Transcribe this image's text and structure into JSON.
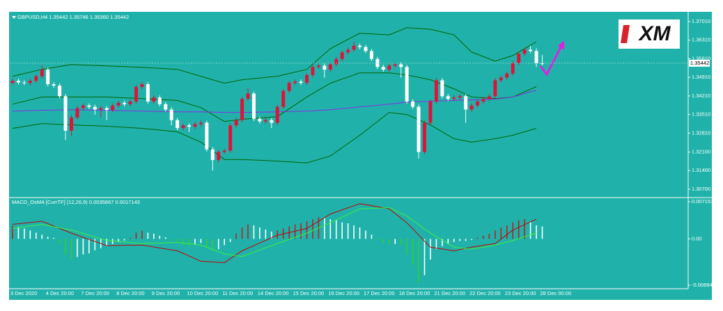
{
  "chart_data": [
    {
      "type": "candlestick",
      "title": "GBPUSD,H4  1.35442 1.35746 1.35360 1.35442",
      "categories": [
        "3 Dec 2020",
        null,
        null,
        null,
        null,
        null,
        "4 Dec 20:00",
        null,
        null,
        null,
        null,
        null,
        "7 Dec 20:00",
        null,
        null,
        null,
        null,
        null,
        "8 Dec 20:00",
        null,
        null,
        null,
        null,
        null,
        "9 Dec 20:00",
        null,
        null,
        null,
        null,
        null,
        "10 Dec 20:00",
        null,
        null,
        null,
        null,
        null,
        "11 Dec 20:00",
        null,
        null,
        null,
        null,
        null,
        "14 Dec 20:00",
        null,
        null,
        null,
        null,
        null,
        "15 Dec 20:00",
        null,
        null,
        null,
        null,
        null,
        "16 Dec 20:00",
        null,
        null,
        null,
        null,
        null,
        "17 Dec 20:00",
        null,
        null,
        null,
        null,
        null,
        "18 Dec 20:00",
        null,
        null,
        null,
        null,
        null,
        "21 Dec 20:00",
        null,
        null,
        null,
        null,
        null,
        "22 Dec 20:00",
        null,
        null,
        null,
        null,
        null,
        "23 Dec 20:00",
        null,
        null,
        null,
        null,
        null,
        "28 Dec 00:00"
      ],
      "ohlc": [
        [
          1.347,
          1.3486,
          1.3462,
          1.3478
        ],
        [
          1.3478,
          1.3486,
          1.3464,
          1.3472
        ],
        [
          1.3472,
          1.348,
          1.3462,
          1.347
        ],
        [
          1.347,
          1.3486,
          1.3462,
          1.3478
        ],
        [
          1.3478,
          1.3503,
          1.347,
          1.3495
        ],
        [
          1.3495,
          1.3535,
          1.3487,
          1.352
        ],
        [
          1.352,
          1.3528,
          1.3457,
          1.3465
        ],
        [
          1.3465,
          1.3473,
          1.3452,
          1.346
        ],
        [
          1.346,
          1.3468,
          1.3412,
          1.342
        ],
        [
          1.342,
          1.3428,
          1.3255,
          1.329
        ],
        [
          1.329,
          1.3348,
          1.327,
          1.334
        ],
        [
          1.334,
          1.3383,
          1.3332,
          1.3375
        ],
        [
          1.3375,
          1.3393,
          1.3367,
          1.3385
        ],
        [
          1.3385,
          1.3393,
          1.3372,
          1.338
        ],
        [
          1.338,
          1.3388,
          1.335,
          1.337
        ],
        [
          1.337,
          1.3383,
          1.334,
          1.3375
        ],
        [
          1.3375,
          1.3383,
          1.333,
          1.3368
        ],
        [
          1.3368,
          1.3393,
          1.336,
          1.3385
        ],
        [
          1.3385,
          1.3403,
          1.3377,
          1.3395
        ],
        [
          1.3395,
          1.3403,
          1.3382,
          1.339
        ],
        [
          1.339,
          1.3408,
          1.3382,
          1.34
        ],
        [
          1.34,
          1.3463,
          1.3392,
          1.3455
        ],
        [
          1.3455,
          1.3473,
          1.3447,
          1.3465
        ],
        [
          1.3465,
          1.3473,
          1.3392,
          1.34
        ],
        [
          1.34,
          1.3423,
          1.3392,
          1.3415
        ],
        [
          1.3415,
          1.3423,
          1.3382,
          1.339
        ],
        [
          1.339,
          1.3398,
          1.3362,
          1.337
        ],
        [
          1.337,
          1.3378,
          1.331,
          1.333
        ],
        [
          1.333,
          1.3338,
          1.3292,
          1.33
        ],
        [
          1.33,
          1.3318,
          1.3292,
          1.331
        ],
        [
          1.331,
          1.3318,
          1.3285,
          1.3305
        ],
        [
          1.3305,
          1.3323,
          1.3297,
          1.3315
        ],
        [
          1.3315,
          1.3328,
          1.3307,
          1.332
        ],
        [
          1.332,
          1.3328,
          1.3212,
          1.322
        ],
        [
          1.322,
          1.3228,
          1.314,
          1.318
        ],
        [
          1.318,
          1.3218,
          1.3172,
          1.321
        ],
        [
          1.321,
          1.3223,
          1.3202,
          1.3215
        ],
        [
          1.3215,
          1.3318,
          1.3207,
          1.331
        ],
        [
          1.331,
          1.3338,
          1.3302,
          1.333
        ],
        [
          1.333,
          1.3418,
          1.3322,
          1.341
        ],
        [
          1.341,
          1.345,
          1.3402,
          1.343
        ],
        [
          1.343,
          1.3438,
          1.3327,
          1.3335
        ],
        [
          1.3335,
          1.3343,
          1.3317,
          1.3325
        ],
        [
          1.3325,
          1.3338,
          1.3317,
          1.333
        ],
        [
          1.333,
          1.3338,
          1.33,
          1.332
        ],
        [
          1.332,
          1.3388,
          1.3312,
          1.338
        ],
        [
          1.338,
          1.3448,
          1.3372,
          1.344
        ],
        [
          1.344,
          1.3478,
          1.3432,
          1.347
        ],
        [
          1.347,
          1.3483,
          1.3462,
          1.3475
        ],
        [
          1.3475,
          1.3483,
          1.3462,
          1.347
        ],
        [
          1.347,
          1.3508,
          1.3462,
          1.35
        ],
        [
          1.35,
          1.3538,
          1.3492,
          1.353
        ],
        [
          1.353,
          1.3543,
          1.3522,
          1.3535
        ],
        [
          1.3535,
          1.3543,
          1.349,
          1.352
        ],
        [
          1.352,
          1.3548,
          1.3512,
          1.354
        ],
        [
          1.354,
          1.3568,
          1.3532,
          1.356
        ],
        [
          1.356,
          1.3593,
          1.3552,
          1.3585
        ],
        [
          1.3585,
          1.3603,
          1.3577,
          1.3595
        ],
        [
          1.3595,
          1.3625,
          1.3587,
          1.361
        ],
        [
          1.361,
          1.3618,
          1.3597,
          1.3605
        ],
        [
          1.3605,
          1.3613,
          1.3582,
          1.359
        ],
        [
          1.359,
          1.3598,
          1.3552,
          1.356
        ],
        [
          1.356,
          1.3568,
          1.3522,
          1.353
        ],
        [
          1.353,
          1.3538,
          1.3512,
          1.352
        ],
        [
          1.352,
          1.3543,
          1.3512,
          1.3535
        ],
        [
          1.3535,
          1.3548,
          1.3527,
          1.354
        ],
        [
          1.354,
          1.3548,
          1.349,
          1.353
        ],
        [
          1.353,
          1.3538,
          1.3392,
          1.34
        ],
        [
          1.34,
          1.3408,
          1.3372,
          1.338
        ],
        [
          1.338,
          1.3388,
          1.3185,
          1.321
        ],
        [
          1.321,
          1.3328,
          1.3202,
          1.332
        ],
        [
          1.332,
          1.3408,
          1.3312,
          1.34
        ],
        [
          1.34,
          1.3488,
          1.3392,
          1.348
        ],
        [
          1.348,
          1.3488,
          1.3412,
          1.342
        ],
        [
          1.342,
          1.3428,
          1.3402,
          1.341
        ],
        [
          1.341,
          1.3423,
          1.3402,
          1.3415
        ],
        [
          1.3415,
          1.3428,
          1.3407,
          1.342
        ],
        [
          1.342,
          1.3428,
          1.332,
          1.337
        ],
        [
          1.337,
          1.3393,
          1.3362,
          1.3385
        ],
        [
          1.3385,
          1.3408,
          1.3377,
          1.34
        ],
        [
          1.34,
          1.3418,
          1.3392,
          1.341
        ],
        [
          1.341,
          1.3428,
          1.3402,
          1.342
        ],
        [
          1.342,
          1.3488,
          1.3412,
          1.348
        ],
        [
          1.348,
          1.3498,
          1.3472,
          1.349
        ],
        [
          1.349,
          1.3513,
          1.3482,
          1.3505
        ],
        [
          1.3505,
          1.3553,
          1.3497,
          1.3545
        ],
        [
          1.3545,
          1.3588,
          1.3537,
          1.358
        ],
        [
          1.358,
          1.3603,
          1.3572,
          1.3595
        ],
        [
          1.3595,
          1.361,
          1.3582,
          1.359
        ],
        [
          1.359,
          1.36,
          1.353,
          1.3544
        ],
        [
          1.35442,
          1.35746,
          1.3536,
          1.35442
        ]
      ],
      "up_color": "#dc143c",
      "down_color": "#ffffff",
      "series": [
        {
          "color": "#006400",
          "x": [
            0,
            5,
            10,
            16,
            22,
            28,
            32,
            36,
            39,
            45,
            50,
            54,
            59,
            64,
            67,
            71,
            75,
            78,
            82,
            85,
            89
          ],
          "values": [
            1.3495,
            1.3521,
            1.3539,
            1.3534,
            1.3529,
            1.3521,
            1.3495,
            1.3469,
            1.3482,
            1.3495,
            1.3521,
            1.3599,
            1.3657,
            1.3651,
            1.3678,
            1.3672,
            1.3651,
            1.3586,
            1.3552,
            1.3573,
            1.3625
          ]
        },
        {
          "color": "#006400",
          "x": [
            0,
            5,
            10,
            16,
            22,
            28,
            32,
            36,
            39,
            45,
            50,
            54,
            59,
            64,
            67,
            71,
            75,
            78,
            82,
            85,
            89
          ],
          "values": [
            1.3299,
            1.3317,
            1.3312,
            1.3307,
            1.3299,
            1.3286,
            1.3247,
            1.3182,
            1.3182,
            1.3176,
            1.3169,
            1.3195,
            1.3273,
            1.3359,
            1.3351,
            1.3312,
            1.326,
            1.3247,
            1.326,
            1.3273,
            1.3299
          ]
        },
        {
          "color": "#006400",
          "x": [
            0,
            5,
            10,
            16,
            22,
            28,
            32,
            36,
            39,
            45,
            50,
            54,
            59,
            64,
            67,
            71,
            75,
            78,
            82,
            85,
            89
          ],
          "values": [
            1.339,
            1.3417,
            1.3417,
            1.3417,
            1.3411,
            1.3404,
            1.3377,
            1.3325,
            1.3333,
            1.3343,
            1.3417,
            1.3469,
            1.3508,
            1.3508,
            1.35,
            1.3482,
            1.3448,
            1.3417,
            1.3411,
            1.3417,
            1.3456
          ]
        },
        {
          "color": "#8a2be2",
          "x": [
            0,
            5,
            10,
            16,
            22,
            28,
            32,
            36,
            39,
            45,
            50,
            54,
            59,
            64,
            67,
            71,
            75,
            78,
            82,
            85,
            89
          ],
          "values": [
            1.3364,
            1.3367,
            1.3369,
            1.3367,
            1.3364,
            1.3361,
            1.3361,
            1.3359,
            1.3359,
            1.3361,
            1.3364,
            1.3369,
            1.338,
            1.339,
            1.3398,
            1.3401,
            1.3404,
            1.3406,
            1.3409,
            1.3417,
            1.3443
          ]
        }
      ],
      "ylim": [
        1.3041,
        1.3735
      ],
      "yticks": [
        {
          "value": 1.3701,
          "label": "1.37010"
        },
        {
          "value": 1.3631,
          "label": "1.36310"
        },
        {
          "value": 1.3561,
          "label": "1.35610"
        },
        {
          "value": 1.3491,
          "label": "1.34910"
        },
        {
          "value": 1.3421,
          "label": "1.34210"
        },
        {
          "value": 1.3351,
          "label": "1.33510"
        },
        {
          "value": 1.3281,
          "label": "1.32810"
        },
        {
          "value": 1.321,
          "label": "1.32100"
        },
        {
          "value": 1.314,
          "label": "1.31400"
        },
        {
          "value": 1.307,
          "label": "1.30700"
        }
      ],
      "last_price": {
        "value": 1.35442,
        "label": "1.35442"
      }
    },
    {
      "type": "macd",
      "title": "MACD_OsMA [CurrTF] (12,26,9) 0.0035867 0.0017143",
      "histogram": [
        0.0025,
        0.0023,
        0.002,
        0.0016,
        0.0012,
        0.0008,
        0.0004,
        0.0002,
        -0.001,
        -0.003,
        -0.004,
        -0.0035,
        -0.003,
        -0.0028,
        -0.0022,
        -0.0018,
        -0.0014,
        -0.001,
        -0.0006,
        -0.0003,
        0.0002,
        0.0012,
        0.0016,
        0.0012,
        0.001,
        0.0006,
        0.0003,
        -0.0004,
        -0.0008,
        -0.0012,
        -0.0014,
        -0.001,
        -0.0008,
        -0.0018,
        -0.0022,
        -0.002,
        -0.0012,
        -0.0006,
        0.001,
        0.0022,
        0.0028,
        0.0026,
        0.0022,
        0.0018,
        0.0014,
        0.0016,
        0.002,
        0.0024,
        0.0028,
        0.003,
        0.0034,
        0.0038,
        0.0042,
        0.004,
        0.0038,
        0.0036,
        0.0032,
        0.003,
        0.0026,
        0.0022,
        0.0016,
        0.0008,
        -0.0002,
        -0.0008,
        -0.001,
        -0.001,
        -0.0012,
        -0.003,
        -0.005,
        -0.0085,
        -0.007,
        -0.004,
        -0.002,
        -0.0014,
        -0.001,
        -0.0006,
        -0.0004,
        -0.0004,
        -0.0002,
        0.0002,
        0.0006,
        0.001,
        0.0016,
        0.0022,
        0.0026,
        0.0032,
        0.0036,
        0.0038,
        0.0032,
        0.0026,
        0.0024
      ],
      "hist_colors": {
        "rise_above": "#b22222",
        "fall_above": "#ffffff",
        "fall_below": "#32cd32",
        "rise_below": "#ffffff"
      },
      "series": [
        {
          "color": "#c00000",
          "x": [
            0,
            5,
            10,
            16,
            22,
            28,
            32,
            36,
            39,
            45,
            50,
            54,
            59,
            64,
            67,
            71,
            75,
            78,
            82,
            85,
            89
          ],
          "values": [
            0.0028,
            0.0034,
            0.0011,
            -0.0013,
            -0.0012,
            -0.0023,
            -0.0043,
            -0.0046,
            -0.0023,
            0.0007,
            0.002,
            0.0048,
            0.0068,
            0.0058,
            0.0031,
            -0.0016,
            -0.0023,
            -0.0016,
            -0.0009,
            0.0017,
            0.0038
          ]
        },
        {
          "color": "#3cf03c",
          "x": [
            0,
            5,
            10,
            16,
            22,
            28,
            32,
            36,
            39,
            45,
            50,
            54,
            59,
            64,
            67,
            71,
            75,
            78,
            82,
            85,
            89
          ],
          "values": [
            0.002,
            0.0028,
            0.0017,
            -0.0003,
            -0.0009,
            -0.0007,
            -0.0012,
            -0.0029,
            -0.0034,
            -0.0009,
            0.0011,
            0.0031,
            0.0058,
            0.006,
            0.0044,
            0.0011,
            -0.0016,
            -0.002,
            -0.0012,
            -0.0003,
            0.0011
          ]
        }
      ],
      "ylim": [
        -0.00962,
        0.00783
      ],
      "yticks": [
        0.007157,
        {
          "value": 0,
          "label": "0.00"
        },
        -0.008944
      ]
    }
  ],
  "logo": "XM"
}
